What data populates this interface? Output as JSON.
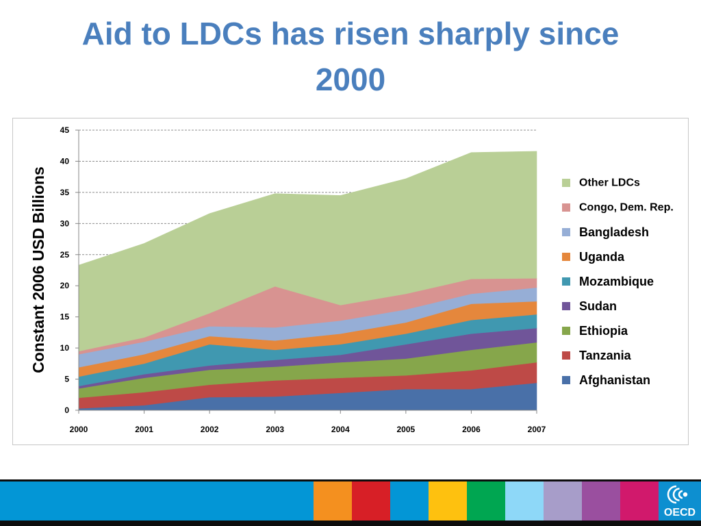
{
  "slide": {
    "title": "Aid to LDCs has risen sharply since 2000",
    "title_color": "#4a7fbd"
  },
  "chart_data": {
    "type": "area",
    "stacked": true,
    "categories": [
      "2000",
      "2001",
      "2002",
      "2003",
      "2004",
      "2005",
      "2006",
      "2007"
    ],
    "ylabel": "Constant 2006 USD Billions",
    "ylim": [
      0,
      45
    ],
    "yticks": [
      0,
      5,
      10,
      15,
      20,
      25,
      30,
      35,
      40,
      45
    ],
    "grid": true,
    "legend": "right",
    "series": [
      {
        "name": "Afghanistan",
        "color": "#4970a8",
        "values": [
          0.3,
          0.8,
          2.1,
          2.2,
          2.8,
          3.4,
          3.4,
          4.4
        ]
      },
      {
        "name": "Tanzania",
        "color": "#be4a47",
        "values": [
          1.7,
          2.1,
          2.0,
          2.6,
          2.4,
          2.2,
          3.0,
          3.3
        ]
      },
      {
        "name": "Ethiopia",
        "color": "#86a64b",
        "values": [
          1.5,
          2.3,
          2.4,
          2.2,
          2.5,
          2.7,
          3.3,
          3.2
        ]
      },
      {
        "name": "Sudan",
        "color": "#705599",
        "values": [
          0.4,
          0.6,
          0.7,
          1.1,
          1.2,
          2.3,
          2.6,
          2.3
        ]
      },
      {
        "name": "Mozambique",
        "color": "#4098b0",
        "values": [
          1.5,
          1.7,
          3.4,
          1.6,
          1.7,
          1.7,
          2.2,
          2.2
        ]
      },
      {
        "name": "Uganda",
        "color": "#e5873c",
        "values": [
          1.5,
          1.5,
          1.3,
          1.5,
          1.7,
          1.8,
          2.6,
          2.1
        ]
      },
      {
        "name": "Bangladesh",
        "color": "#96aed6",
        "values": [
          2.1,
          2.0,
          1.6,
          2.1,
          2.1,
          2.1,
          1.6,
          2.2
        ]
      },
      {
        "name": "Congo, Dem. Rep.",
        "color": "#d89391",
        "values": [
          0.5,
          0.7,
          2.1,
          6.6,
          2.5,
          2.5,
          2.4,
          1.5
        ]
      },
      {
        "name": "Other LDCs",
        "color": "#b9cf96",
        "values": [
          13.8,
          15.1,
          16.0,
          14.9,
          17.6,
          18.5,
          20.3,
          20.4
        ]
      }
    ]
  },
  "footer": {
    "band_color": "#0396d6",
    "block_colors": [
      "#f4901f",
      "#d71f26",
      "#0396d6",
      "#fec10f",
      "#00a651",
      "#8ed8f8",
      "#a79dc9",
      "#9a4f9f",
      "#d1196c"
    ],
    "logo_background": "#0d8fd0",
    "logo_icon": "oecd-logo",
    "logo_text": "OECD"
  }
}
